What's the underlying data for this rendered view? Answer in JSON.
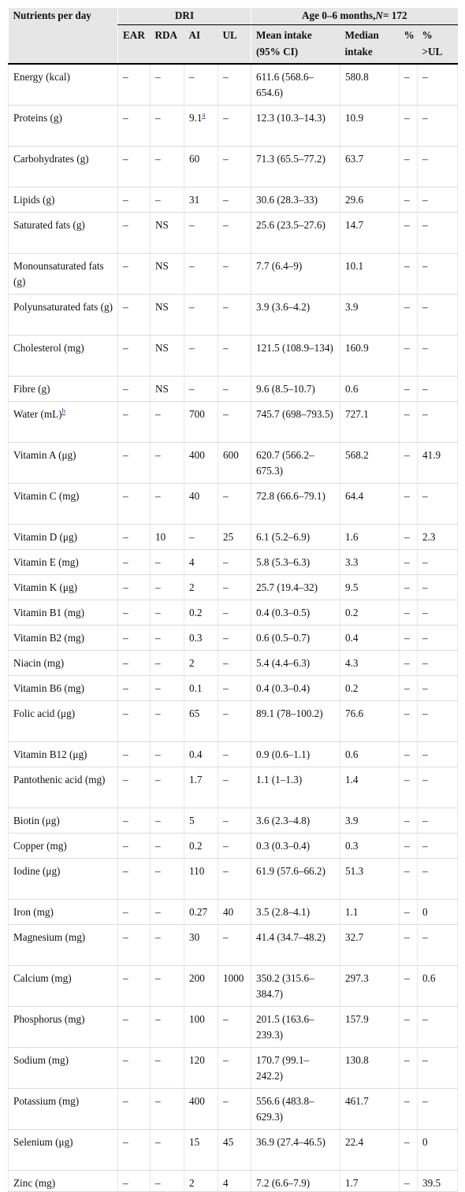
{
  "header": {
    "nutrients_label": "Nutrients per day",
    "dri_label": "DRI",
    "age_label_prefix": "Age 0–6 months, ",
    "age_label_n": "N",
    "age_label_suffix": " = 172",
    "ear": "EAR",
    "rda": "RDA",
    "ai": "AI",
    "ul": "UL",
    "mean_line1": "Mean intake",
    "mean_line2": "(95% CI)",
    "median_line1": "Median",
    "median_line2": "intake",
    "pct": "%",
    "pct_ul_line1": "%",
    "pct_ul_line2": ">UL"
  },
  "rows": [
    {
      "n": "Energy (kcal)",
      "ear": "–",
      "rda": "–",
      "ai": "–",
      "ul": "–",
      "mean": "611.6 (568.6–654.6)",
      "median": "580.8",
      "pct": "–",
      "pctul": "–"
    },
    {
      "n": "Proteins (g)",
      "ear": "–",
      "rda": "–",
      "ai": "9.1",
      "ai_sup": "a",
      "ul": "–",
      "mean": "12.3 (10.3–14.3)",
      "median": "10.9",
      "pct": "–",
      "pctul": "–"
    },
    {
      "n": "Carbohydrates (g)",
      "ear": "–",
      "rda": "–",
      "ai": "60",
      "ul": "–",
      "mean": "71.3 (65.5–77.2)",
      "median": "63.7",
      "pct": "–",
      "pctul": "–"
    },
    {
      "n": "Lipids (g)",
      "ear": "–",
      "rda": "–",
      "ai": "31",
      "ul": "–",
      "mean": "30.6 (28.3–33)",
      "median": "29.6",
      "pct": "–",
      "pctul": "–"
    },
    {
      "n": "Saturated fats (g)",
      "ear": "–",
      "rda": "NS",
      "ai": "–",
      "ul": "–",
      "mean": "25.6 (23.5–27.6)",
      "median": "14.7",
      "pct": "–",
      "pctul": "–"
    },
    {
      "n": "Monounsaturated fats (g)",
      "ear": "–",
      "rda": "NS",
      "ai": "–",
      "ul": "–",
      "mean": "7.7 (6.4–9)",
      "median": "10.1",
      "pct": "–",
      "pctul": "–"
    },
    {
      "n": "Polyunsaturated fats (g)",
      "ear": "–",
      "rda": "NS",
      "ai": "–",
      "ul": "–",
      "mean": "3.9 (3.6–4.2)",
      "median": "3.9",
      "pct": "–",
      "pctul": "–"
    },
    {
      "n": "Cholesterol (mg)",
      "ear": "–",
      "rda": "NS",
      "ai": "–",
      "ul": "–",
      "mean": "121.5 (108.9–134)",
      "median": "160.9",
      "pct": "–",
      "pctul": "–"
    },
    {
      "n": "Fibre (g)",
      "ear": "–",
      "rda": "NS",
      "ai": "–",
      "ul": "–",
      "mean": "9.6 (8.5–10.7)",
      "median": "0.6",
      "pct": "–",
      "pctul": "–"
    },
    {
      "n": "Water (mL)",
      "n_sup": "b",
      "ear": "–",
      "rda": "–",
      "ai": "700",
      "ul": "–",
      "mean": "745.7 (698–793.5)",
      "median": "727.1",
      "pct": "–",
      "pctul": "–"
    },
    {
      "n": "Vitamin A (μg)",
      "ear": "–",
      "rda": "–",
      "ai": "400",
      "ul": "600",
      "mean": "620.7 (566.2–675.3)",
      "median": "568.2",
      "pct": "–",
      "pctul": "41.9"
    },
    {
      "n": "Vitamin C (mg)",
      "ear": "–",
      "rda": "–",
      "ai": "40",
      "ul": "–",
      "mean": "72.8 (66.6–79.1)",
      "median": "64.4",
      "pct": "–",
      "pctul": "–"
    },
    {
      "n": "Vitamin D (μg)",
      "ear": "–",
      "rda": "10",
      "ai": "–",
      "ul": "25",
      "mean": "6.1 (5.2–6.9)",
      "median": "1.6",
      "pct": "–",
      "pctul": "2.3"
    },
    {
      "n": "Vitamin E (mg)",
      "ear": "–",
      "rda": "–",
      "ai": "4",
      "ul": "–",
      "mean": "5.8 (5.3–6.3)",
      "median": "3.3",
      "pct": "–",
      "pctul": "–"
    },
    {
      "n": "Vitamin K (μg)",
      "ear": "–",
      "rda": "–",
      "ai": "2",
      "ul": "–",
      "mean": "25.7 (19.4–32)",
      "median": "9.5",
      "pct": "–",
      "pctul": "–"
    },
    {
      "n": "Vitamin B1 (mg)",
      "ear": "–",
      "rda": "–",
      "ai": "0.2",
      "ul": "–",
      "mean": "0.4 (0.3–0.5)",
      "median": "0.2",
      "pct": "–",
      "pctul": "–"
    },
    {
      "n": "Vitamin B2 (mg)",
      "ear": "–",
      "rda": "–",
      "ai": "0.3",
      "ul": "–",
      "mean": "0.6 (0.5–0.7)",
      "median": "0.4",
      "pct": "–",
      "pctul": "–"
    },
    {
      "n": "Niacin (mg)",
      "ear": "–",
      "rda": "–",
      "ai": "2",
      "ul": "–",
      "mean": "5.4 (4.4–6.3)",
      "median": "4.3",
      "pct": "–",
      "pctul": "–"
    },
    {
      "n": "Vitamin B6 (mg)",
      "ear": "–",
      "rda": "–",
      "ai": "0.1",
      "ul": "–",
      "mean": "0.4 (0.3–0.4)",
      "median": "0.2",
      "pct": "–",
      "pctul": "–"
    },
    {
      "n": "Folic acid (μg)",
      "ear": "–",
      "rda": "–",
      "ai": "65",
      "ul": "–",
      "mean": "89.1 (78–100.2)",
      "median": "76.6",
      "pct": "–",
      "pctul": "–"
    },
    {
      "n": "Vitamin B12 (μg)",
      "ear": "–",
      "rda": "–",
      "ai": "0.4",
      "ul": "–",
      "mean": "0.9 (0.6–1.1)",
      "median": "0.6",
      "pct": "–",
      "pctul": "–"
    },
    {
      "n": "Pantothenic acid (mg)",
      "ear": "–",
      "rda": "–",
      "ai": "1.7",
      "ul": "–",
      "mean": "1.1 (1–1.3)",
      "median": "1.4",
      "pct": "–",
      "pctul": "–"
    },
    {
      "n": "Biotin (μg)",
      "ear": "–",
      "rda": "–",
      "ai": "5",
      "ul": "–",
      "mean": "3.6 (2.3–4.8)",
      "median": "3.9",
      "pct": "–",
      "pctul": "–"
    },
    {
      "n": "Copper (mg)",
      "ear": "–",
      "rda": "–",
      "ai": "0.2",
      "ul": "–",
      "mean": "0.3 (0.3–0.4)",
      "median": "0.3",
      "pct": "–",
      "pctul": "–"
    },
    {
      "n": "Iodine (μg)",
      "ear": "–",
      "rda": "–",
      "ai": "110",
      "ul": "–",
      "mean": "61.9 (57.6–66.2)",
      "median": "51.3",
      "pct": "–",
      "pctul": "–"
    },
    {
      "n": "Iron (mg)",
      "ear": "–",
      "rda": "–",
      "ai": "0.27",
      "ul": "40",
      "mean": "3.5 (2.8–4.1)",
      "median": "1.1",
      "pct": "–",
      "pctul": "0"
    },
    {
      "n": "Magnesium (mg)",
      "ear": "–",
      "rda": "–",
      "ai": "30",
      "ul": "–",
      "mean": "41.4 (34.7–48.2)",
      "median": "32.7",
      "pct": "–",
      "pctul": "–"
    },
    {
      "n": "Calcium (mg)",
      "ear": "–",
      "rda": "–",
      "ai": "200",
      "ul": "1000",
      "mean": "350.2 (315.6–384.7)",
      "median": "297.3",
      "pct": "–",
      "pctul": "0.6"
    },
    {
      "n": "Phosphorus (mg)",
      "ear": "–",
      "rda": "–",
      "ai": "100",
      "ul": "–",
      "mean": "201.5 (163.6–239.3)",
      "median": "157.9",
      "pct": "–",
      "pctul": "–"
    },
    {
      "n": "Sodium (mg)",
      "ear": "–",
      "rda": "–",
      "ai": "120",
      "ul": "–",
      "mean": "170.7 (99.1–242.2)",
      "median": "130.8",
      "pct": "–",
      "pctul": "–"
    },
    {
      "n": "Potassium (mg)",
      "ear": "–",
      "rda": "–",
      "ai": "400",
      "ul": "–",
      "mean": "556.6 (483.8–629.3)",
      "median": "461.7",
      "pct": "–",
      "pctul": "–"
    },
    {
      "n": "Selenium (μg)",
      "ear": "–",
      "rda": "–",
      "ai": "15",
      "ul": "45",
      "mean": "36.9 (27.4–46.5)",
      "median": "22.4",
      "pct": "–",
      "pctul": "0"
    },
    {
      "n": "Zinc (mg)",
      "ear": "–",
      "rda": "–",
      "ai": "2",
      "ul": "4",
      "mean": "7.2 (6.6–7.9)",
      "median": "1.7",
      "pct": "–",
      "pctul": "39.5"
    }
  ]
}
